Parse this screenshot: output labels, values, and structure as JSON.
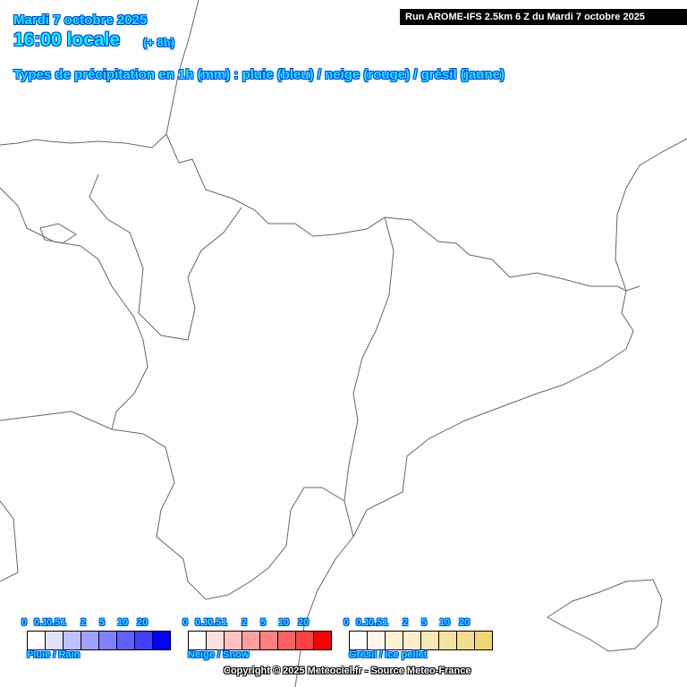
{
  "header": {
    "date": "Mardi 7 octobre 2025",
    "time": "16:00 locale",
    "offset": "(+ 8h)",
    "subtitle": "Types de précipitation en 1h (mm) : pluie (bleu) / neige (rouge) / grésil (jaune)",
    "run": "Run AROME-IFS 2.5km 6 Z du Mardi 7 octobre 2025"
  },
  "legend": {
    "ticks": [
      "0",
      "0.1",
      "0.5",
      "1",
      "2",
      "5",
      "10",
      "20"
    ],
    "rain": {
      "label": "Pluie / Rain",
      "colors": [
        "#ffffff",
        "#e0e0ff",
        "#c0c0ff",
        "#a0a0ff",
        "#8080ff",
        "#6060ff",
        "#4040ff",
        "#0000ff"
      ]
    },
    "snow": {
      "label": "Neige / Snow",
      "colors": [
        "#ffffff",
        "#ffe0e0",
        "#ffc0c0",
        "#ffa0a0",
        "#ff8080",
        "#ff6060",
        "#ff4040",
        "#ff0000"
      ]
    },
    "sleet": {
      "label": "Grésil / Ice pellet",
      "colors": [
        "#ffffff",
        "#fcf8e8",
        "#fbf2d6",
        "#f9eec8",
        "#f7e8b4",
        "#f5e3a2",
        "#f3de90",
        "#f0d870"
      ]
    }
  },
  "copyright": "Copyright © 2025 Meteociel.fr - Source Meteo-France"
}
